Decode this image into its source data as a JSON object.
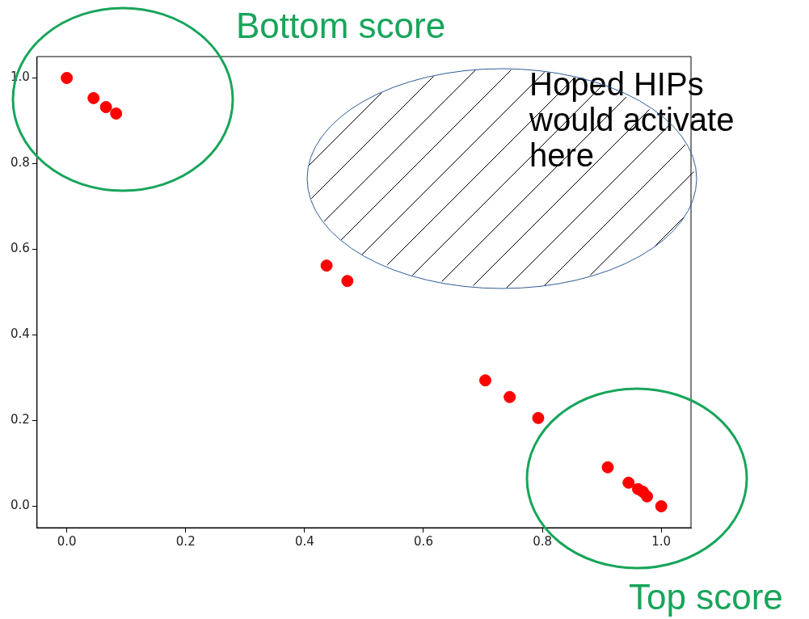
{
  "chart_data": {
    "type": "scatter",
    "x": [
      0,
      0.045,
      0.066,
      0.083,
      0.437,
      0.472,
      0.704,
      0.745,
      0.793,
      0.91,
      0.945,
      0.961,
      0.969,
      0.976,
      1.0
    ],
    "series": [
      {
        "color": "#ff0000",
        "values": [
          1.0,
          0.953,
          0.932,
          0.917,
          0.562,
          0.526,
          0.294,
          0.255,
          0.206,
          0.091,
          0.055,
          0.04,
          0.034,
          0.023,
          0.0
        ]
      }
    ],
    "xlim": [
      -0.05,
      1.05
    ],
    "ylim": [
      -0.05,
      1.05
    ],
    "xticks": [
      {
        "value": 0,
        "label": "0.0"
      },
      {
        "value": 0.2,
        "label": "0.2"
      },
      {
        "value": 0.4,
        "label": "0.4"
      },
      {
        "value": 0.6,
        "label": "0.6"
      },
      {
        "value": 0.8,
        "label": "0.8"
      },
      {
        "value": 1,
        "label": "1.0"
      }
    ],
    "yticks": [
      {
        "value": 0,
        "label": "0.0"
      },
      {
        "value": 0.2,
        "label": "0.2"
      },
      {
        "value": 0.4,
        "label": "0.4"
      },
      {
        "value": 0.6,
        "label": "0.6"
      },
      {
        "value": 0.8,
        "label": "0.8"
      },
      {
        "value": 1,
        "label": "1.0"
      }
    ],
    "grid": false,
    "legend": false,
    "marker": "circle",
    "annotations": [
      "Bottom score",
      "Top score",
      "Hoped HIPs would activate here"
    ]
  }
}
